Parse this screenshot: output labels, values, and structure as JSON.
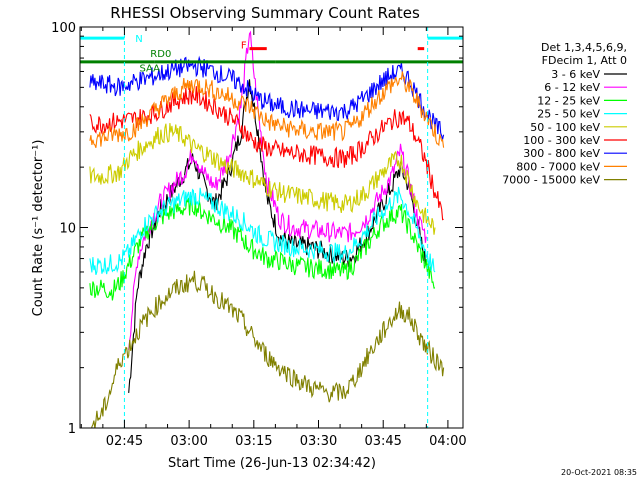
{
  "chart_data": {
    "type": "line",
    "title": "RHESSI Observing Summary Count Rates",
    "xlabel": "Start Time (26-Jun-13 02:34:42)",
    "ylabel": "Count Rate (s⁻¹ detector⁻¹)",
    "y_scale": "log",
    "ylim": [
      1,
      100
    ],
    "xlim_minutes_after_0230": [
      4.7,
      93.5
    ],
    "x_ticks": [
      {
        "label": "02:45",
        "t": 15
      },
      {
        "label": "03:00",
        "t": 30
      },
      {
        "label": "03:15",
        "t": 45
      },
      {
        "label": "03:30",
        "t": 60
      },
      {
        "label": "03:45",
        "t": 75
      },
      {
        "label": "04:00",
        "t": 90
      }
    ],
    "y_ticks": [
      {
        "label": "1",
        "v": 1
      },
      {
        "label": "10",
        "v": 10
      },
      {
        "label": "100",
        "v": 100
      }
    ],
    "legend_header": [
      "Det 1,3,4,5,6,9,",
      "FDecim 1, Att 0"
    ],
    "series": [
      {
        "name": "3 - 6 keV",
        "color": "#000000",
        "points": [
          [
            16,
            1.5
          ],
          [
            18,
            5
          ],
          [
            20,
            8
          ],
          [
            23,
            12
          ],
          [
            26,
            15
          ],
          [
            29,
            19
          ],
          [
            31,
            22
          ],
          [
            33,
            17
          ],
          [
            36,
            13
          ],
          [
            39,
            18
          ],
          [
            42,
            30
          ],
          [
            44,
            55
          ],
          [
            46,
            30
          ],
          [
            48,
            14
          ],
          [
            51,
            9
          ],
          [
            54,
            8.2
          ],
          [
            58,
            8
          ],
          [
            62,
            7.5
          ],
          [
            66,
            7
          ],
          [
            68,
            7.2
          ],
          [
            71,
            9
          ],
          [
            74,
            12
          ],
          [
            77,
            16
          ],
          [
            79,
            20
          ],
          [
            81,
            16
          ],
          [
            83,
            10
          ],
          [
            85,
            6.5
          ]
        ]
      },
      {
        "name": "6 - 12 keV",
        "color": "#ff00ff",
        "points": [
          [
            16,
            2.6
          ],
          [
            18,
            7
          ],
          [
            20,
            9.5
          ],
          [
            23,
            13
          ],
          [
            26,
            16
          ],
          [
            29,
            19
          ],
          [
            31,
            24
          ],
          [
            33,
            19
          ],
          [
            36,
            16
          ],
          [
            39,
            22
          ],
          [
            42,
            40
          ],
          [
            44,
            95
          ],
          [
            46,
            38
          ],
          [
            48,
            17
          ],
          [
            51,
            11
          ],
          [
            54,
            10
          ],
          [
            58,
            9.8
          ],
          [
            62,
            9.5
          ],
          [
            66,
            9.3
          ],
          [
            68,
            9.5
          ],
          [
            71,
            11
          ],
          [
            74,
            14
          ],
          [
            77,
            18
          ],
          [
            79,
            24
          ],
          [
            81,
            17
          ],
          [
            83,
            11
          ],
          [
            85,
            9
          ]
        ]
      },
      {
        "name": "12 - 25 keV",
        "color": "#00ff00",
        "points": [
          [
            7,
            5
          ],
          [
            10,
            5
          ],
          [
            12,
            4.8
          ],
          [
            14,
            5.3
          ],
          [
            16,
            6.5
          ],
          [
            18,
            8
          ],
          [
            20,
            9.5
          ],
          [
            23,
            11
          ],
          [
            26,
            12
          ],
          [
            29,
            12.5
          ],
          [
            31,
            13
          ],
          [
            33,
            12
          ],
          [
            36,
            11
          ],
          [
            39,
            10
          ],
          [
            42,
            9
          ],
          [
            44,
            8
          ],
          [
            46,
            7.5
          ],
          [
            48,
            7
          ],
          [
            51,
            6.8
          ],
          [
            54,
            6.5
          ],
          [
            58,
            6.3
          ],
          [
            62,
            6.2
          ],
          [
            66,
            6
          ],
          [
            68,
            6.5
          ],
          [
            71,
            8
          ],
          [
            74,
            10
          ],
          [
            77,
            11.5
          ],
          [
            79,
            12
          ],
          [
            81,
            10
          ],
          [
            83,
            8
          ],
          [
            85,
            6.5
          ],
          [
            87,
            5
          ]
        ]
      },
      {
        "name": "25 - 50 keV",
        "color": "#00ffff",
        "points": [
          [
            7,
            6.5
          ],
          [
            10,
            6.5
          ],
          [
            12,
            6.6
          ],
          [
            14,
            6.8
          ],
          [
            16,
            7.5
          ],
          [
            18,
            9
          ],
          [
            20,
            10.5
          ],
          [
            23,
            12
          ],
          [
            26,
            13
          ],
          [
            29,
            14
          ],
          [
            31,
            14.5
          ],
          [
            33,
            14
          ],
          [
            36,
            13
          ],
          [
            39,
            12
          ],
          [
            42,
            11
          ],
          [
            44,
            10
          ],
          [
            46,
            9.2
          ],
          [
            48,
            8.7
          ],
          [
            51,
            8.3
          ],
          [
            54,
            8
          ],
          [
            58,
            7.8
          ],
          [
            62,
            7.6
          ],
          [
            66,
            7.4
          ],
          [
            68,
            8
          ],
          [
            71,
            9.5
          ],
          [
            74,
            11.5
          ],
          [
            77,
            13.5
          ],
          [
            79,
            14.5
          ],
          [
            81,
            12
          ],
          [
            83,
            9.5
          ],
          [
            85,
            7.5
          ],
          [
            87,
            6
          ]
        ]
      },
      {
        "name": "50 - 100 keV",
        "color": "#cccc00",
        "points": [
          [
            7,
            18
          ],
          [
            10,
            18
          ],
          [
            12,
            18.5
          ],
          [
            14,
            19
          ],
          [
            16,
            22
          ],
          [
            18,
            24
          ],
          [
            20,
            26
          ],
          [
            23,
            29
          ],
          [
            26,
            30
          ],
          [
            29,
            28
          ],
          [
            31,
            25
          ],
          [
            33,
            24
          ],
          [
            36,
            22
          ],
          [
            39,
            20
          ],
          [
            42,
            19
          ],
          [
            44,
            18
          ],
          [
            46,
            17
          ],
          [
            48,
            16
          ],
          [
            51,
            15
          ],
          [
            54,
            14.5
          ],
          [
            58,
            14
          ],
          [
            62,
            13.5
          ],
          [
            66,
            13
          ],
          [
            68,
            13.5
          ],
          [
            71,
            15
          ],
          [
            74,
            18
          ],
          [
            77,
            21
          ],
          [
            79,
            22
          ],
          [
            81,
            17
          ],
          [
            83,
            13
          ],
          [
            85,
            11
          ],
          [
            87,
            10
          ]
        ]
      },
      {
        "name": "100 - 300 keV",
        "color": "#ff0000",
        "points": [
          [
            7,
            33
          ],
          [
            10,
            33
          ],
          [
            12,
            33.5
          ],
          [
            14,
            34
          ],
          [
            16,
            34.5
          ],
          [
            18,
            35
          ],
          [
            20,
            36
          ],
          [
            23,
            38
          ],
          [
            26,
            42
          ],
          [
            29,
            45
          ],
          [
            31,
            46
          ],
          [
            33,
            44
          ],
          [
            36,
            40
          ],
          [
            39,
            36
          ],
          [
            42,
            32
          ],
          [
            44,
            28
          ],
          [
            46,
            26
          ],
          [
            48,
            25
          ],
          [
            51,
            24
          ],
          [
            54,
            23.5
          ],
          [
            58,
            23
          ],
          [
            62,
            22.5
          ],
          [
            66,
            22
          ],
          [
            68,
            23
          ],
          [
            71,
            26
          ],
          [
            74,
            30
          ],
          [
            77,
            34
          ],
          [
            79,
            36
          ],
          [
            81,
            33
          ],
          [
            83,
            27
          ],
          [
            85,
            21
          ],
          [
            87,
            15
          ],
          [
            89,
            11
          ]
        ]
      },
      {
        "name": "300 - 800 keV",
        "color": "#0000ff",
        "points": [
          [
            7,
            52
          ],
          [
            10,
            52
          ],
          [
            12,
            51
          ],
          [
            14,
            50
          ],
          [
            16,
            52
          ],
          [
            18,
            54
          ],
          [
            20,
            55
          ],
          [
            23,
            58
          ],
          [
            26,
            61
          ],
          [
            29,
            63
          ],
          [
            31,
            64
          ],
          [
            33,
            63
          ],
          [
            36,
            60
          ],
          [
            39,
            56
          ],
          [
            42,
            52
          ],
          [
            44,
            48
          ],
          [
            46,
            44
          ],
          [
            48,
            42
          ],
          [
            51,
            40
          ],
          [
            54,
            39
          ],
          [
            58,
            38
          ],
          [
            62,
            38
          ],
          [
            66,
            38
          ],
          [
            68,
            40
          ],
          [
            71,
            45
          ],
          [
            74,
            52
          ],
          [
            77,
            58
          ],
          [
            79,
            60
          ],
          [
            81,
            55
          ],
          [
            83,
            45
          ],
          [
            85,
            38
          ],
          [
            87,
            32
          ],
          [
            89,
            29
          ]
        ]
      },
      {
        "name": "800 - 7000 keV",
        "color": "#ff8000",
        "points": [
          [
            7,
            28
          ],
          [
            10,
            28
          ],
          [
            12,
            29
          ],
          [
            14,
            29.5
          ],
          [
            16,
            30
          ],
          [
            18,
            32
          ],
          [
            20,
            35
          ],
          [
            23,
            40
          ],
          [
            26,
            45
          ],
          [
            29,
            50
          ],
          [
            31,
            52
          ],
          [
            33,
            51
          ],
          [
            36,
            48
          ],
          [
            39,
            45
          ],
          [
            42,
            42
          ],
          [
            44,
            40
          ],
          [
            46,
            37
          ],
          [
            48,
            34
          ],
          [
            51,
            32
          ],
          [
            54,
            31
          ],
          [
            58,
            30
          ],
          [
            62,
            30
          ],
          [
            66,
            30
          ],
          [
            68,
            32
          ],
          [
            71,
            38
          ],
          [
            74,
            45
          ],
          [
            77,
            52
          ],
          [
            79,
            55
          ],
          [
            81,
            50
          ],
          [
            83,
            42
          ],
          [
            85,
            36
          ],
          [
            87,
            30
          ],
          [
            89,
            25
          ]
        ]
      },
      {
        "name": "7000 - 15000 keV",
        "color": "#808000",
        "points": [
          [
            7,
            1.0
          ],
          [
            10,
            1.2
          ],
          [
            12,
            1.6
          ],
          [
            14,
            2.2
          ],
          [
            16,
            2.5
          ],
          [
            18,
            3.0
          ],
          [
            20,
            3.5
          ],
          [
            23,
            4.2
          ],
          [
            26,
            4.8
          ],
          [
            29,
            5.2
          ],
          [
            31,
            5.5
          ],
          [
            33,
            5.2
          ],
          [
            36,
            4.6
          ],
          [
            39,
            4.0
          ],
          [
            42,
            3.5
          ],
          [
            44,
            3.0
          ],
          [
            46,
            2.6
          ],
          [
            48,
            2.3
          ],
          [
            51,
            2.0
          ],
          [
            54,
            1.8
          ],
          [
            58,
            1.6
          ],
          [
            62,
            1.5
          ],
          [
            66,
            1.5
          ],
          [
            68,
            1.7
          ],
          [
            71,
            2.2
          ],
          [
            74,
            2.8
          ],
          [
            77,
            3.5
          ],
          [
            79,
            3.9
          ],
          [
            81,
            3.6
          ],
          [
            83,
            3.0
          ],
          [
            85,
            2.5
          ],
          [
            87,
            2.2
          ],
          [
            89,
            2.0
          ]
        ]
      }
    ],
    "annotations": [
      {
        "text": "N",
        "color": "#00ffff",
        "t": 17.5,
        "v": 84
      },
      {
        "text": "RD0",
        "color": "#008000",
        "t": 21,
        "v": 71
      },
      {
        "text": "F",
        "color": "#ff0000",
        "t": 42,
        "v": 78
      },
      {
        "text": "SAA",
        "color": "#008000",
        "t": 18.5,
        "v": 60
      }
    ],
    "state_bars": [
      {
        "name": "night",
        "color": "#00ffff",
        "spans": [
          [
            4.7,
            15.0
          ],
          [
            85.3,
            93.5
          ]
        ],
        "v": 88
      },
      {
        "name": "decimation",
        "color": "#008000",
        "spans": [
          [
            4.7,
            22.0
          ],
          [
            22.0,
            50.0
          ],
          [
            50.0,
            93.5
          ]
        ],
        "v": 67
      },
      {
        "name": "flare",
        "color": "#ff0000",
        "spans": [
          [
            44,
            48
          ],
          [
            83,
            84.5
          ]
        ],
        "v": 78
      }
    ],
    "vertical_markers": [
      {
        "color": "#00ffff",
        "t": 15.0
      },
      {
        "color": "#00ffff",
        "t": 85.3
      }
    ],
    "grid": false,
    "legend_placement": "right"
  },
  "timestamp": "20-Oct-2021 08:35"
}
